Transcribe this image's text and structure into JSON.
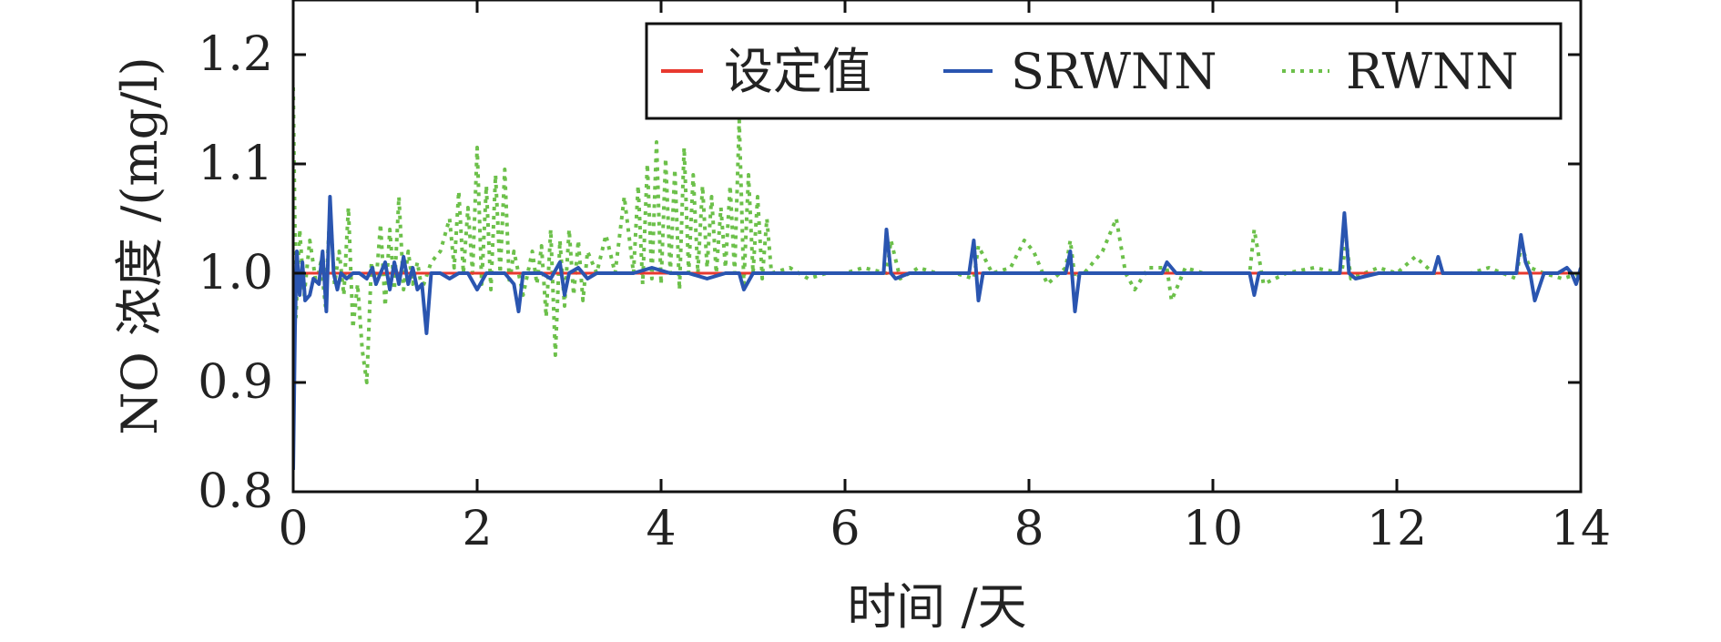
{
  "chart_data": {
    "type": "line",
    "xlabel": "时间 /天",
    "ylabel": "NO 浓度 /(mg/l)",
    "xlim": [
      0,
      14
    ],
    "ylim": [
      0.8,
      1.25
    ],
    "xticks": [
      "0",
      "2",
      "4",
      "6",
      "8",
      "10",
      "12",
      "14"
    ],
    "yticks": [
      "0.8",
      "0.9",
      "1.0",
      "1.1",
      "1.2"
    ],
    "grid": false,
    "legend_position": "top-right",
    "series": [
      {
        "name": "设定值",
        "color": "#e8392f",
        "style": "solid",
        "x": [
          0,
          14
        ],
        "y": [
          1.0,
          1.0
        ]
      },
      {
        "name": "SRWNN",
        "color": "#2a55b0",
        "style": "solid",
        "x": [
          0,
          0.02,
          0.04,
          0.07,
          0.1,
          0.13,
          0.18,
          0.22,
          0.28,
          0.32,
          0.36,
          0.4,
          0.44,
          0.48,
          0.52,
          0.58,
          0.65,
          0.72,
          0.8,
          0.86,
          0.9,
          0.95,
          1.0,
          1.05,
          1.1,
          1.15,
          1.2,
          1.25,
          1.3,
          1.35,
          1.4,
          1.45,
          1.5,
          1.6,
          1.7,
          1.8,
          1.9,
          2.0,
          2.1,
          2.2,
          2.3,
          2.4,
          2.45,
          2.5,
          2.6,
          2.7,
          2.8,
          2.9,
          2.95,
          3.0,
          3.1,
          3.2,
          3.3,
          3.5,
          3.7,
          3.9,
          4.1,
          4.3,
          4.5,
          4.7,
          4.85,
          4.9,
          5.0,
          5.2,
          5.5,
          5.8,
          6.1,
          6.3,
          6.42,
          6.45,
          6.5,
          6.55,
          6.7,
          7.0,
          7.2,
          7.35,
          7.4,
          7.45,
          7.5,
          7.6,
          7.9,
          8.2,
          8.4,
          8.45,
          8.5,
          8.55,
          8.7,
          9.0,
          9.3,
          9.45,
          9.5,
          9.6,
          9.8,
          10.0,
          10.2,
          10.4,
          10.45,
          10.5,
          10.6,
          10.9,
          11.2,
          11.38,
          11.43,
          11.48,
          11.55,
          11.8,
          12.1,
          12.4,
          12.45,
          12.5,
          12.6,
          12.9,
          13.1,
          13.3,
          13.35,
          13.4,
          13.45,
          13.5,
          13.6,
          13.75,
          13.85,
          13.9,
          13.95,
          14.0
        ],
        "y": [
          0.82,
          0.95,
          1.02,
          0.98,
          1.01,
          0.975,
          0.98,
          0.995,
          0.99,
          1.02,
          0.965,
          1.07,
          1.0,
          0.985,
          1.0,
          0.995,
          1.0,
          1.0,
          0.995,
          1.005,
          0.99,
          1.0,
          1.01,
          0.985,
          1.01,
          0.99,
          1.015,
          0.99,
          1.005,
          0.985,
          0.99,
          0.945,
          1.0,
          1.0,
          0.995,
          1.0,
          1.0,
          0.985,
          1.0,
          1.0,
          1.0,
          0.99,
          0.965,
          1.0,
          1.0,
          1.0,
          0.995,
          1.01,
          0.98,
          1.0,
          1.005,
          0.995,
          1.0,
          1.0,
          1.0,
          1.005,
          1.0,
          1.0,
          0.995,
          1.0,
          1.0,
          0.985,
          1.0,
          1.0,
          1.0,
          1.0,
          1.0,
          1.0,
          1.0,
          1.04,
          1.0,
          0.995,
          1.0,
          1.0,
          1.0,
          1.0,
          1.03,
          0.975,
          1.0,
          1.0,
          1.0,
          1.0,
          1.0,
          1.02,
          0.965,
          1.0,
          1.0,
          1.0,
          1.0,
          1.0,
          1.01,
          1.0,
          1.0,
          1.0,
          1.0,
          1.0,
          0.98,
          1.0,
          1.0,
          1.0,
          1.0,
          1.0,
          1.055,
          1.0,
          0.995,
          1.0,
          1.0,
          1.0,
          1.015,
          1.0,
          1.0,
          1.0,
          1.0,
          1.0,
          1.035,
          1.01,
          1.0,
          0.975,
          1.0,
          1.0,
          1.005,
          1.0,
          0.99,
          1.005
        ]
      },
      {
        "name": "RWNN",
        "color": "#6cc04a",
        "style": "dotted",
        "x": [
          0,
          0.03,
          0.07,
          0.12,
          0.18,
          0.25,
          0.3,
          0.35,
          0.4,
          0.45,
          0.5,
          0.55,
          0.6,
          0.65,
          0.7,
          0.75,
          0.8,
          0.85,
          0.9,
          0.95,
          1.0,
          1.05,
          1.1,
          1.15,
          1.2,
          1.25,
          1.3,
          1.35,
          1.4,
          1.5,
          1.6,
          1.7,
          1.75,
          1.8,
          1.85,
          1.9,
          1.95,
          2.0,
          2.05,
          2.1,
          2.15,
          2.2,
          2.25,
          2.3,
          2.35,
          2.4,
          2.5,
          2.6,
          2.65,
          2.7,
          2.75,
          2.8,
          2.85,
          2.9,
          2.95,
          3.0,
          3.05,
          3.1,
          3.15,
          3.2,
          3.3,
          3.4,
          3.5,
          3.6,
          3.7,
          3.75,
          3.8,
          3.85,
          3.9,
          3.95,
          4.0,
          4.05,
          4.1,
          4.15,
          4.2,
          4.25,
          4.3,
          4.35,
          4.4,
          4.45,
          4.5,
          4.55,
          4.6,
          4.65,
          4.7,
          4.75,
          4.8,
          4.85,
          4.9,
          4.95,
          5.0,
          5.05,
          5.1,
          5.15,
          5.2,
          5.4,
          5.6,
          5.8,
          6.0,
          6.2,
          6.45,
          6.5,
          6.6,
          6.8,
          7.0,
          7.2,
          7.4,
          7.45,
          7.6,
          7.8,
          7.95,
          8.05,
          8.2,
          8.4,
          8.45,
          8.5,
          8.6,
          8.8,
          8.95,
          9.05,
          9.15,
          9.3,
          9.5,
          9.55,
          9.7,
          9.9,
          10.2,
          10.4,
          10.45,
          10.55,
          10.8,
          11.1,
          11.4,
          11.45,
          11.5,
          11.8,
          12.0,
          12.2,
          12.4,
          12.5,
          12.8,
          13.0,
          13.3,
          13.35,
          13.45,
          13.6,
          13.8,
          14.0
        ],
        "y": [
          1.17,
          0.96,
          1.04,
          0.98,
          1.03,
          0.99,
          1.01,
          0.97,
          1.06,
          0.99,
          1.02,
          0.98,
          1.06,
          0.95,
          0.99,
          0.93,
          0.9,
          1.01,
          0.99,
          1.045,
          0.97,
          1.04,
          0.985,
          1.07,
          0.985,
          1.02,
          0.99,
          1.01,
          0.985,
          1.01,
          1.02,
          1.05,
          1.005,
          1.075,
          1.0,
          1.06,
          1.0,
          1.115,
          0.99,
          1.08,
          0.985,
          1.09,
          1.0,
          1.095,
          0.99,
          1.02,
          0.98,
          1.02,
          0.99,
          1.025,
          0.96,
          1.04,
          0.925,
          1.03,
          0.97,
          1.04,
          0.98,
          1.03,
          0.975,
          1.02,
          1.0,
          1.035,
          1.0,
          1.07,
          1.0,
          1.08,
          0.99,
          1.1,
          0.995,
          1.12,
          0.99,
          1.105,
          1.0,
          1.095,
          0.985,
          1.115,
          1.0,
          1.09,
          1.0,
          1.08,
          1.005,
          1.07,
          1.0,
          1.06,
          1.005,
          1.08,
          1.0,
          1.14,
          0.99,
          1.09,
          1.0,
          1.07,
          0.995,
          1.05,
          1.0,
          1.005,
          0.995,
          1.0,
          1.0,
          1.005,
          1.0,
          1.03,
          0.995,
          1.005,
          1.0,
          1.0,
          0.995,
          1.025,
          1.0,
          1.005,
          1.03,
          1.02,
          0.99,
          1.005,
          1.03,
          0.995,
          1.0,
          1.02,
          1.05,
          1.0,
          0.985,
          1.005,
          1.005,
          0.975,
          1.005,
          1.0,
          1.0,
          1.0,
          1.04,
          0.99,
          1.0,
          1.005,
          1.0,
          1.03,
          0.995,
          1.005,
          1.0,
          1.015,
          1.0,
          1.0,
          1.0,
          1.005,
          0.995,
          1.025,
          1.005,
          1.0,
          0.995,
          1.0
        ]
      }
    ]
  }
}
